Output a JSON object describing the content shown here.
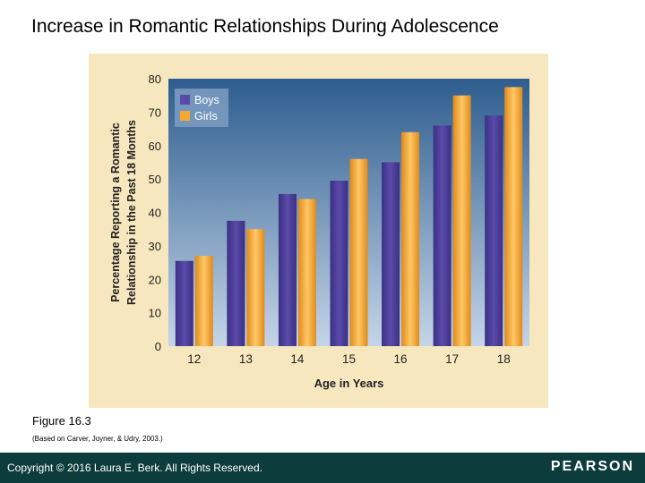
{
  "slide": {
    "title": "Increase in Romantic Relationships During Adolescence",
    "figure_label": "Figure 16.3",
    "figure_source": "(Based on Carver, Joyner, & Udry, 2003.)"
  },
  "footer": {
    "copyright": "Copyright © 2016 Laura E. Berk. All Rights Reserved.",
    "publisher": "PEARSON"
  },
  "colors": {
    "panel_bg": "#f6e7be",
    "plot_top": "#2d5d8e",
    "plot_bottom": "#c5d5e8",
    "boys": "#5a4ba8",
    "girls": "#f7a833",
    "footer_bg": "#0d3c3c"
  },
  "chart_data": {
    "type": "bar",
    "title": "",
    "xlabel": "Age in Years",
    "ylabel_line1": "Percentage Reporting a Romantic",
    "ylabel_line2": "Relationship in the Past 18 Months",
    "categories": [
      "12",
      "13",
      "14",
      "15",
      "16",
      "17",
      "18"
    ],
    "yticks": [
      "0",
      "10",
      "20",
      "30",
      "40",
      "50",
      "60",
      "70",
      "80"
    ],
    "ylim": [
      0,
      80
    ],
    "legend_position": "top-left",
    "series": [
      {
        "name": "Boys",
        "color": "#5a4ba8",
        "values": [
          25.5,
          37.5,
          45.5,
          49.5,
          55,
          66,
          69
        ]
      },
      {
        "name": "Girls",
        "color": "#f7a833",
        "values": [
          27,
          35,
          44,
          56,
          64,
          75,
          77.5
        ]
      }
    ]
  }
}
